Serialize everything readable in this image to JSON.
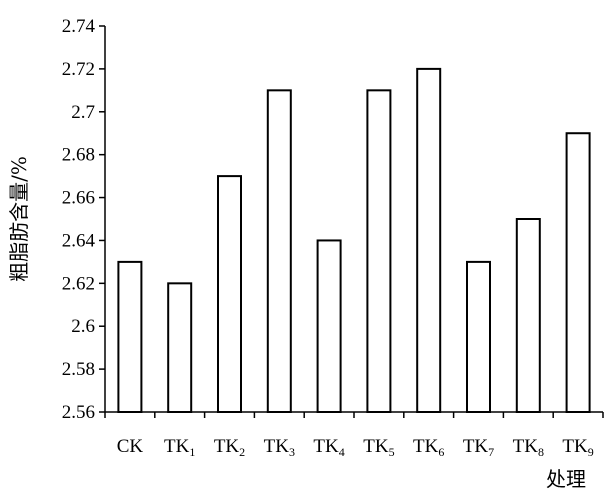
{
  "chart_data": {
    "type": "bar",
    "title": "",
    "xlabel": "处理",
    "ylabel": "粗脂肪含量/%",
    "categories": [
      {
        "main": "CK",
        "sub": ""
      },
      {
        "main": "TK",
        "sub": "1"
      },
      {
        "main": "TK",
        "sub": "2"
      },
      {
        "main": "TK",
        "sub": "3"
      },
      {
        "main": "TK",
        "sub": "4"
      },
      {
        "main": "TK",
        "sub": "5"
      },
      {
        "main": "TK",
        "sub": "6"
      },
      {
        "main": "TK",
        "sub": "7"
      },
      {
        "main": "TK",
        "sub": "8"
      },
      {
        "main": "TK",
        "sub": "9"
      }
    ],
    "values": [
      2.63,
      2.62,
      2.67,
      2.71,
      2.64,
      2.71,
      2.72,
      2.63,
      2.65,
      2.69
    ],
    "ylim": [
      2.56,
      2.74
    ],
    "yticks": [
      "2.56",
      "2.58",
      "2.6",
      "2.62",
      "2.64",
      "2.66",
      "2.68",
      "2.7",
      "2.72",
      "2.74"
    ],
    "grid": false,
    "legend": "none",
    "bar_fill": "#ffffff",
    "bar_stroke": "#000000"
  }
}
